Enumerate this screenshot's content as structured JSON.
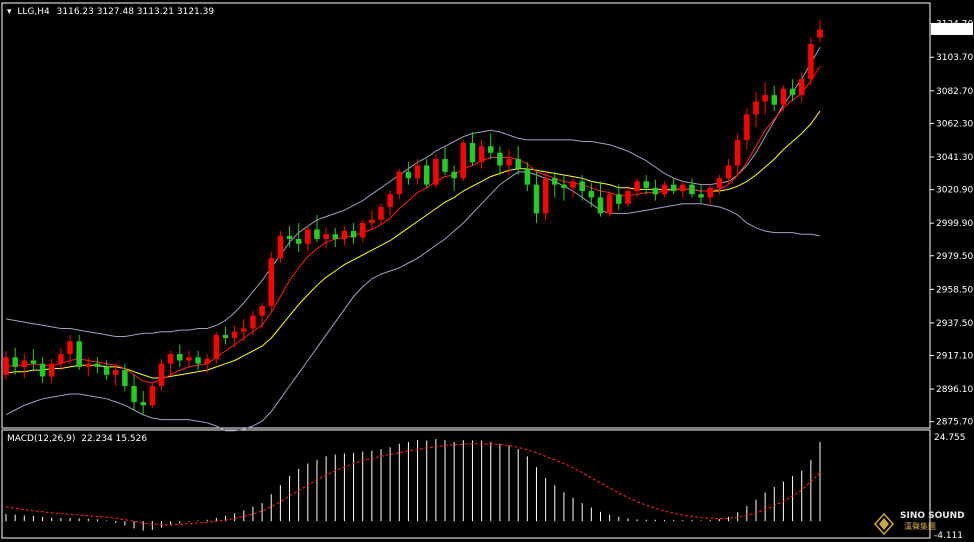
{
  "header": {
    "symbol": "LLG,H4",
    "ohlc": "3116.23 3127.48 3113.21 3121.39"
  },
  "macd_header": {
    "label": "MACD(12,26,9)",
    "values": "22.234 15.526"
  },
  "watermark": {
    "brand": "SINO SOUND",
    "sub": "漢聲集團"
  },
  "colors": {
    "background": "#000000",
    "up": "#ff0000",
    "down": "#22cc22",
    "ma_fast": "#ff2020",
    "ma_slow": "#ffff00",
    "bands": "#a0a0c0",
    "macd_hist": "#ffffff",
    "macd_signal": "#ff2020",
    "grid": "#ffffff"
  },
  "chart_data": {
    "type": "candlestick",
    "price_ticks": [
      "3124.70",
      "3103.70",
      "3082.70",
      "3062.30",
      "3041.30",
      "3020.90",
      "2999.90",
      "2979.50",
      "2958.50",
      "2937.50",
      "2917.10",
      "2896.10",
      "2875.70"
    ],
    "ylim": [
      2873.0,
      3127.0
    ],
    "current_price": "3121.39",
    "macd_ticks": [
      "24.755",
      "-4.111"
    ],
    "macd_ylim": [
      -4.111,
      24.755
    ],
    "candles": [
      [
        2905,
        2920,
        2902,
        2916
      ],
      [
        2916,
        2922,
        2905,
        2910
      ],
      [
        2910,
        2918,
        2903,
        2914
      ],
      [
        2914,
        2921,
        2908,
        2912
      ],
      [
        2912,
        2916,
        2900,
        2904
      ],
      [
        2904,
        2915,
        2900,
        2912
      ],
      [
        2912,
        2922,
        2908,
        2918
      ],
      [
        2918,
        2930,
        2912,
        2926
      ],
      [
        2926,
        2930,
        2908,
        2910
      ],
      [
        2910,
        2916,
        2904,
        2912
      ],
      [
        2912,
        2916,
        2906,
        2910
      ],
      [
        2910,
        2914,
        2902,
        2905
      ],
      [
        2905,
        2912,
        2898,
        2908
      ],
      [
        2908,
        2912,
        2895,
        2898
      ],
      [
        2898,
        2905,
        2883,
        2888
      ],
      [
        2888,
        2895,
        2880,
        2886
      ],
      [
        2886,
        2900,
        2884,
        2898
      ],
      [
        2898,
        2915,
        2895,
        2912
      ],
      [
        2912,
        2920,
        2905,
        2918
      ],
      [
        2918,
        2924,
        2910,
        2914
      ],
      [
        2914,
        2920,
        2910,
        2916
      ],
      [
        2916,
        2920,
        2908,
        2912
      ],
      [
        2912,
        2918,
        2906,
        2915
      ],
      [
        2915,
        2932,
        2912,
        2930
      ],
      [
        2930,
        2935,
        2924,
        2928
      ],
      [
        2928,
        2936,
        2922,
        2932
      ],
      [
        2932,
        2940,
        2926,
        2934
      ],
      [
        2934,
        2945,
        2930,
        2942
      ],
      [
        2942,
        2950,
        2934,
        2948
      ],
      [
        2948,
        2982,
        2945,
        2978
      ],
      [
        2978,
        2995,
        2975,
        2992
      ],
      [
        2992,
        2998,
        2985,
        2990
      ],
      [
        2990,
        3000,
        2982,
        2987
      ],
      [
        2987,
        2998,
        2982,
        2996
      ],
      [
        2996,
        3005,
        2988,
        2990
      ],
      [
        2990,
        2997,
        2984,
        2993
      ],
      [
        2993,
        2997,
        2985,
        2990
      ],
      [
        2990,
        2998,
        2986,
        2995
      ],
      [
        2995,
        3000,
        2987,
        2991
      ],
      [
        2991,
        3002,
        2988,
        3000
      ],
      [
        3000,
        3008,
        2996,
        3002
      ],
      [
        3002,
        3012,
        2999,
        3010
      ],
      [
        3010,
        3020,
        3004,
        3018
      ],
      [
        3018,
        3034,
        3015,
        3032
      ],
      [
        3032,
        3038,
        3024,
        3028
      ],
      [
        3028,
        3040,
        3024,
        3036
      ],
      [
        3036,
        3040,
        3022,
        3024
      ],
      [
        3024,
        3043,
        3022,
        3040
      ],
      [
        3040,
        3048,
        3030,
        3032
      ],
      [
        3032,
        3036,
        3020,
        3028
      ],
      [
        3028,
        3052,
        3026,
        3050
      ],
      [
        3050,
        3057,
        3036,
        3038
      ],
      [
        3038,
        3052,
        3034,
        3048
      ],
      [
        3048,
        3056,
        3040,
        3044
      ],
      [
        3044,
        3048,
        3030,
        3036
      ],
      [
        3036,
        3046,
        3030,
        3040
      ],
      [
        3040,
        3048,
        3030,
        3034
      ],
      [
        3034,
        3038,
        3020,
        3024
      ],
      [
        3024,
        3032,
        3000,
        3006
      ],
      [
        3006,
        3032,
        3002,
        3028
      ],
      [
        3028,
        3032,
        3016,
        3024
      ],
      [
        3024,
        3030,
        3014,
        3022
      ],
      [
        3022,
        3028,
        3016,
        3026
      ],
      [
        3026,
        3030,
        3014,
        3020
      ],
      [
        3020,
        3025,
        3010,
        3016
      ],
      [
        3016,
        3026,
        3004,
        3006
      ],
      [
        3006,
        3020,
        3004,
        3018
      ],
      [
        3018,
        3024,
        3008,
        3012
      ],
      [
        3012,
        3022,
        3010,
        3020
      ],
      [
        3020,
        3028,
        3016,
        3026
      ],
      [
        3026,
        3030,
        3018,
        3022
      ],
      [
        3022,
        3027,
        3014,
        3018
      ],
      [
        3018,
        3026,
        3016,
        3024
      ],
      [
        3024,
        3028,
        3018,
        3020
      ],
      [
        3020,
        3026,
        3016,
        3024
      ],
      [
        3024,
        3028,
        3016,
        3018
      ],
      [
        3018,
        3024,
        3012,
        3016
      ],
      [
        3016,
        3024,
        3012,
        3022
      ],
      [
        3022,
        3030,
        3018,
        3028
      ],
      [
        3028,
        3040,
        3024,
        3036
      ],
      [
        3036,
        3056,
        3030,
        3052
      ],
      [
        3052,
        3072,
        3046,
        3068
      ],
      [
        3068,
        3082,
        3060,
        3076
      ],
      [
        3076,
        3088,
        3068,
        3080
      ],
      [
        3080,
        3086,
        3070,
        3074
      ],
      [
        3074,
        3086,
        3070,
        3084
      ],
      [
        3084,
        3090,
        3076,
        3080
      ],
      [
        3080,
        3094,
        3076,
        3090
      ],
      [
        3090,
        3116,
        3086,
        3112
      ],
      [
        3116,
        3127,
        3113,
        3121
      ]
    ],
    "ma_fast": [
      2910,
      2911,
      2911,
      2912,
      2911,
      2911,
      2912,
      2914,
      2915,
      2914,
      2913,
      2912,
      2911,
      2909,
      2905,
      2901,
      2900,
      2902,
      2905,
      2908,
      2910,
      2911,
      2912,
      2916,
      2920,
      2924,
      2928,
      2932,
      2936,
      2944,
      2954,
      2964,
      2972,
      2979,
      2984,
      2988,
      2990,
      2991,
      2992,
      2994,
      2996,
      2999,
      3003,
      3009,
      3014,
      3019,
      3022,
      3026,
      3029,
      3030,
      3034,
      3036,
      3039,
      3041,
      3041,
      3041,
      3040,
      3037,
      3032,
      3030,
      3028,
      3026,
      3025,
      3024,
      3022,
      3020,
      3019,
      3017,
      3017,
      3018,
      3019,
      3019,
      3020,
      3021,
      3021,
      3021,
      3020,
      3020,
      3021,
      3024,
      3030,
      3038,
      3048,
      3058,
      3065,
      3072,
      3077,
      3081,
      3089,
      3098
    ],
    "ma_slow": [
      2906,
      2907,
      2907,
      2908,
      2908,
      2909,
      2909,
      2910,
      2911,
      2911,
      2911,
      2910,
      2910,
      2909,
      2907,
      2905,
      2903,
      2903,
      2904,
      2905,
      2906,
      2907,
      2908,
      2910,
      2912,
      2914,
      2917,
      2920,
      2923,
      2928,
      2935,
      2942,
      2949,
      2955,
      2961,
      2966,
      2970,
      2974,
      2977,
      2980,
      2983,
      2986,
      2989,
      2993,
      2997,
      3001,
      3005,
      3009,
      3013,
      3016,
      3020,
      3023,
      3026,
      3029,
      3031,
      3033,
      3034,
      3034,
      3033,
      3032,
      3031,
      3030,
      3029,
      3028,
      3026,
      3025,
      3024,
      3022,
      3022,
      3021,
      3021,
      3021,
      3021,
      3021,
      3021,
      3021,
      3020,
      3020,
      3020,
      3021,
      3023,
      3026,
      3030,
      3035,
      3040,
      3046,
      3051,
      3056,
      3062,
      3070
    ],
    "band_upper": [
      2940,
      2939,
      2938,
      2937,
      2936,
      2935,
      2934,
      2934,
      2933,
      2932,
      2931,
      2930,
      2929,
      2929,
      2930,
      2931,
      2931,
      2932,
      2932,
      2933,
      2933,
      2934,
      2934,
      2936,
      2939,
      2944,
      2950,
      2957,
      2964,
      2972,
      2980,
      2988,
      2994,
      2998,
      3002,
      3004,
      3006,
      3008,
      3011,
      3014,
      3018,
      3022,
      3026,
      3030,
      3034,
      3038,
      3041,
      3045,
      3048,
      3051,
      3054,
      3056,
      3057,
      3058,
      3057,
      3055,
      3053,
      3052,
      3052,
      3052,
      3052,
      3052,
      3052,
      3051,
      3051,
      3050,
      3049,
      3047,
      3045,
      3042,
      3039,
      3035,
      3031,
      3028,
      3026,
      3025,
      3024,
      3024,
      3025,
      3026,
      3030,
      3036,
      3044,
      3054,
      3064,
      3074,
      3082,
      3090,
      3100,
      3110
    ],
    "band_lower": [
      2880,
      2883,
      2886,
      2888,
      2890,
      2891,
      2892,
      2893,
      2893,
      2892,
      2891,
      2890,
      2888,
      2886,
      2883,
      2880,
      2878,
      2877,
      2877,
      2877,
      2877,
      2876,
      2875,
      2873,
      2870,
      2870,
      2871,
      2873,
      2876,
      2882,
      2890,
      2898,
      2906,
      2914,
      2922,
      2930,
      2938,
      2946,
      2954,
      2960,
      2965,
      2968,
      2970,
      2972,
      2975,
      2978,
      2982,
      2986,
      2990,
      2995,
      3000,
      3006,
      3012,
      3018,
      3024,
      3028,
      3032,
      3032,
      3030,
      3028,
      3026,
      3023,
      3020,
      3016,
      3012,
      3008,
      3006,
      3006,
      3006,
      3007,
      3008,
      3009,
      3010,
      3011,
      3012,
      3012,
      3012,
      3011,
      3010,
      3008,
      3005,
      3000,
      2997,
      2995,
      2994,
      2994,
      2994,
      2993,
      2993,
      2992
    ],
    "macd_hist": [
      2,
      1.8,
      1.6,
      1.5,
      1.2,
      1.0,
      0.9,
      0.9,
      0.8,
      0.7,
      0.5,
      0.2,
      -0.5,
      -1.2,
      -2.0,
      -2.6,
      -2.4,
      -1.8,
      -1.2,
      -0.6,
      -0.2,
      0.2,
      0.4,
      0.9,
      1.5,
      2.2,
      3.0,
      4.0,
      5.0,
      7.5,
      10,
      12.5,
      14.5,
      16,
      17,
      18,
      18.5,
      18.8,
      19,
      19.3,
      19.6,
      20,
      20.5,
      21.5,
      22,
      22.5,
      22.4,
      22.8,
      22.5,
      22,
      22.5,
      22.4,
      22.4,
      22,
      21.5,
      21,
      20,
      18,
      15,
      12,
      10,
      8,
      6.5,
      5,
      3.8,
      2.6,
      1.8,
      1.2,
      0.8,
      0.5,
      0.4,
      0.4,
      0.3,
      0.3,
      0.3,
      0.3,
      0.2,
      0.3,
      0.6,
      1.2,
      2.5,
      4.2,
      6.0,
      8.0,
      9.5,
      11,
      12.5,
      14,
      17,
      22
    ],
    "macd_signal": [
      4,
      3.6,
      3.2,
      2.9,
      2.6,
      2.3,
      2.1,
      1.9,
      1.7,
      1.5,
      1.3,
      1.1,
      0.8,
      0.4,
      0,
      -0.5,
      -0.8,
      -1.0,
      -1.0,
      -0.9,
      -0.7,
      -0.5,
      -0.3,
      0,
      0.3,
      0.8,
      1.3,
      2,
      2.8,
      4,
      5.4,
      7,
      8.5,
      10,
      11.5,
      12.8,
      14,
      15,
      16,
      16.8,
      17.4,
      18,
      18.5,
      19,
      19.5,
      19.9,
      20.3,
      20.7,
      21,
      21.2,
      21.4,
      21.5,
      21.5,
      21.4,
      21.3,
      21,
      20.5,
      19.8,
      19,
      18,
      17,
      16,
      14.8,
      13.5,
      12,
      10.6,
      9.2,
      7.8,
      6.6,
      5.4,
      4.4,
      3.6,
      2.8,
      2.2,
      1.7,
      1.3,
      1.0,
      0.8,
      0.7,
      0.8,
      1.1,
      1.6,
      2.3,
      3.2,
      4.3,
      5.5,
      7,
      8.7,
      11,
      13.5
    ]
  }
}
